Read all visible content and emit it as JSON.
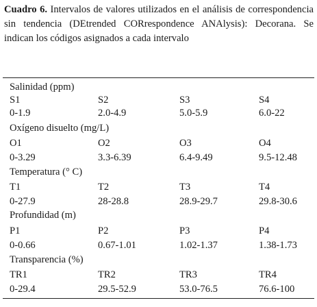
{
  "caption": {
    "label": "Cuadro 6.",
    "text": " Intervalos de valores utilizados en el análisis de correspondencia sin tendencia (DEtrended CORrespondence ANAlysis): Decorana. Se indican los códigos asignados a cada intervalo"
  },
  "groups": [
    {
      "parameter": "Salinidad (ppm)",
      "codes": [
        "S1",
        "S2",
        "S3",
        "S4"
      ],
      "ranges": [
        "0-1.9",
        "2.0-4.9",
        "5.0-5.9",
        "6.0-22"
      ]
    },
    {
      "parameter": "Oxígeno disuelto (mg/L)",
      "codes": [
        "O1",
        "O2",
        "O3",
        "O4"
      ],
      "ranges": [
        "0-3.29",
        "3.3-6.39",
        "6.4-9.49",
        "9.5-12.48"
      ]
    },
    {
      "parameter": "Temperatura (° C)",
      "codes": [
        "T1",
        "T2",
        "T3",
        "T4"
      ],
      "ranges": [
        "0-27.9",
        "28-28.8",
        "28.9-29.7",
        "29.8-30.6"
      ]
    },
    {
      "parameter": "Profundidad (m)",
      "codes": [
        "P1",
        "P2",
        "P3",
        "P4"
      ],
      "ranges": [
        "0-0.66",
        "0.67-1.01",
        "1.02-1.37",
        "1.38-1.73"
      ]
    },
    {
      "parameter": "Transparencia (%)",
      "codes": [
        "TR1",
        "TR2",
        "TR3",
        "TR4"
      ],
      "ranges": [
        "0-29.4",
        "29.5-52.9",
        "53.0-76.5",
        "76.6-100"
      ]
    }
  ]
}
